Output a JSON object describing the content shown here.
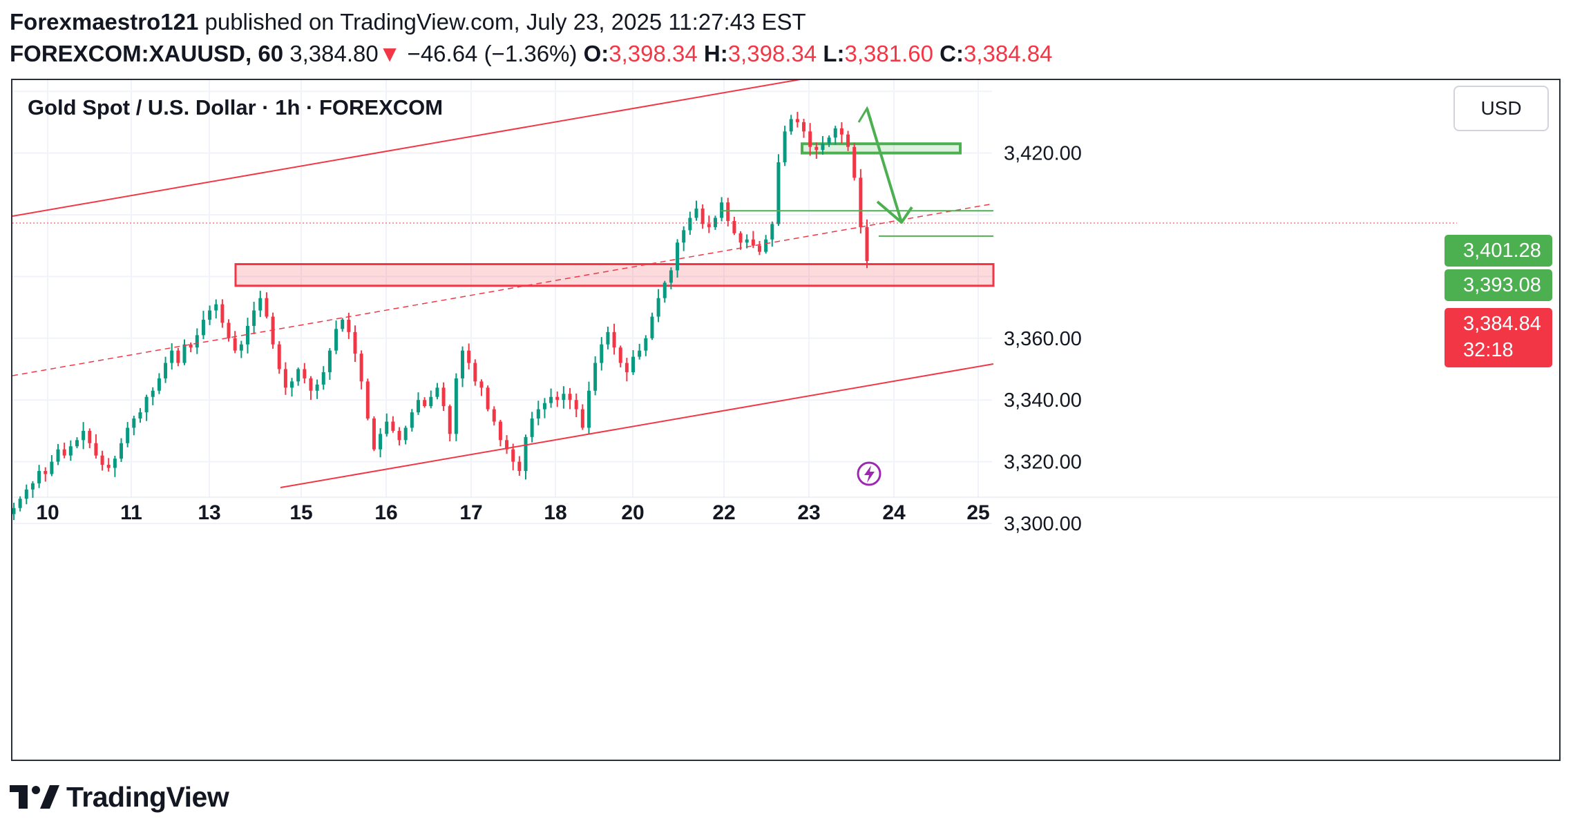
{
  "header": {
    "author": "Forexmaestro121",
    "published_text": "published on TradingView.com, July 23, 2025 11:27:43 EST",
    "symbol": "FOREXCOM:XAUUSD, 60",
    "last_price": "3,384.80",
    "down_arrow": "▼",
    "change": "−46.64 (−1.36%)",
    "o_label": "O:",
    "open": "3,398.34",
    "h_label": "H:",
    "high": "3,398.34",
    "l_label": "L:",
    "low": "3,381.60",
    "c_label": "C:",
    "close": "3,384.84"
  },
  "chart_title": "Gold Spot / U.S. Dollar · 1h · FOREXCOM",
  "currency_button": "USD",
  "tags": {
    "level1": "3,401.28",
    "level2": "3,393.08",
    "current": "3,384.84",
    "countdown": "32:18"
  },
  "branding": {
    "logo_text": "TradingView"
  },
  "colors": {
    "up": "#089981",
    "down": "#f23645",
    "drawing_green": "#4caf50",
    "channel_red": "#f23645"
  },
  "chart_data": {
    "type": "candlestick",
    "title": "Gold Spot / U.S. Dollar · 1h · FOREXCOM",
    "y_ticks": [
      "3,420.00",
      "3,360.00",
      "3,340.00",
      "3,320.00",
      "3,300.00"
    ],
    "y_tick_values": [
      3420,
      3360,
      3340,
      3320,
      3300
    ],
    "x_ticks": [
      "10",
      "11",
      "13",
      "15",
      "16",
      "17",
      "18",
      "20",
      "22",
      "23",
      "24",
      "25"
    ],
    "ylim": [
      3292,
      3442
    ],
    "grid": true,
    "series": [
      {
        "name": "XAUUSD",
        "close": [
          3305,
          3308,
          3311,
          3313,
          3317,
          3316,
          3320,
          3324,
          3322,
          3325,
          3327,
          3330,
          3326,
          3322,
          3319,
          3318,
          3321,
          3326,
          3331,
          3334,
          3336,
          3341,
          3343,
          3347,
          3352,
          3356,
          3352,
          3358,
          3357,
          3361,
          3366,
          3369,
          3371,
          3365,
          3360,
          3356,
          3358,
          3364,
          3369,
          3373,
          3367,
          3358,
          3350,
          3344,
          3346,
          3350,
          3347,
          3343,
          3345,
          3349,
          3356,
          3363,
          3366,
          3362,
          3355,
          3346,
          3334,
          3324,
          3329,
          3333,
          3330,
          3327,
          3331,
          3336,
          3340,
          3338,
          3341,
          3344,
          3338,
          3329,
          3347,
          3356,
          3352,
          3346,
          3344,
          3337,
          3333,
          3327,
          3324,
          3320,
          3317,
          3328,
          3334,
          3337,
          3339,
          3341,
          3340,
          3342,
          3340,
          3337,
          3331,
          3343,
          3352,
          3358,
          3362,
          3357,
          3352,
          3349,
          3354,
          3356,
          3360,
          3367,
          3373,
          3378,
          3382,
          3391,
          3395,
          3399,
          3402,
          3397,
          3396,
          3399,
          3404,
          3398,
          3394,
          3391,
          3392,
          3390,
          3388,
          3392,
          3397,
          3417,
          3427,
          3431,
          3430,
          3427,
          3422,
          3421,
          3423,
          3425,
          3428,
          3426,
          3422,
          3412,
          3396,
          3385
        ]
      }
    ],
    "annotations": {
      "support_zone": [
        3377,
        3384
      ],
      "resistance_zone": [
        3420,
        3423
      ],
      "horizontal_levels": [
        3401.28,
        3393.08
      ],
      "current_price": 3384.84,
      "forecast": "arrow from 3422 down to about 3386"
    }
  }
}
